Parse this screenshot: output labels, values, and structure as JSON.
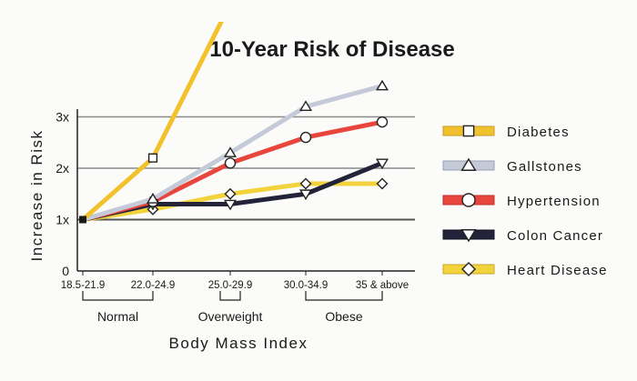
{
  "chart_data": {
    "type": "line",
    "title": "10-Year Risk of Disease",
    "xlabel": "Body Mass Index",
    "ylabel": "Increase in Risk",
    "categories": [
      "18.5-21.9",
      "22.0-24.9",
      "25.0-29.9",
      "30.0-34.9",
      "35 & above"
    ],
    "category_groups": [
      {
        "label": "Normal",
        "from": 0,
        "to": 1
      },
      {
        "label": "Overweight",
        "from": 2,
        "to": 2
      },
      {
        "label": "Obese",
        "from": 3,
        "to": 4
      }
    ],
    "y_ticks": [
      {
        "value": 0,
        "label": "0"
      },
      {
        "value": 1,
        "label": "1x"
      },
      {
        "value": 2,
        "label": "2x"
      },
      {
        "value": 3,
        "label": "3x"
      }
    ],
    "ylim": [
      0,
      3.2
    ],
    "grid": true,
    "legend_position": "right",
    "series": [
      {
        "name": "Diabetes",
        "color": "#f2c22c",
        "outline": "#c8992a",
        "marker": "square",
        "values": [
          1.0,
          2.2,
          5.2,
          null,
          null
        ]
      },
      {
        "name": "Gallstones",
        "color": "#c4cad8",
        "outline": "#9aa2b4",
        "marker": "triangle-up",
        "values": [
          1.0,
          1.4,
          2.3,
          3.2,
          3.6
        ]
      },
      {
        "name": "Hypertension",
        "color": "#e8463c",
        "outline": "#b8322c",
        "marker": "circle",
        "values": [
          1.0,
          1.35,
          2.1,
          2.6,
          2.9
        ]
      },
      {
        "name": "Colon Cancer",
        "color": "#23243a",
        "outline": "#111220",
        "marker": "triangle-down",
        "values": [
          1.0,
          1.3,
          1.3,
          1.5,
          2.1
        ]
      },
      {
        "name": "Heart Disease",
        "color": "#f2d33c",
        "outline": "#c8a82a",
        "marker": "diamond",
        "values": [
          1.0,
          1.2,
          1.5,
          1.7,
          1.7
        ]
      }
    ]
  }
}
